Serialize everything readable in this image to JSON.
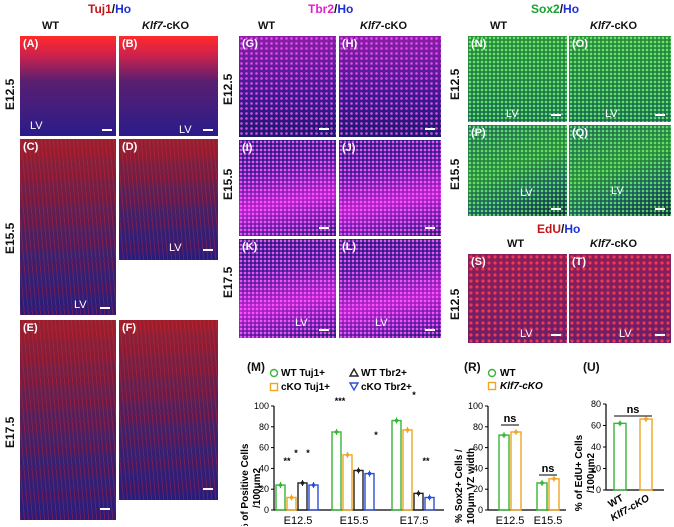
{
  "headers": {
    "tuj1": {
      "marker": "Tuj1",
      "sep": "/",
      "counter": "Ho"
    },
    "tbr2": {
      "marker": "Tbr2",
      "sep": "/",
      "counter": "Ho"
    },
    "sox2": {
      "marker": "Sox2",
      "sep": "/",
      "counter": "Ho"
    },
    "edu": {
      "marker": "EdU",
      "sep": "/",
      "counter": "Ho"
    }
  },
  "columns": {
    "wt": "WT",
    "cko_gene": "Klf7",
    "cko_suffix": "-cKO"
  },
  "rows": {
    "e125": "E12.5",
    "e155": "E15.5",
    "e175": "E17.5"
  },
  "panels": {
    "A": "(A)",
    "B": "(B)",
    "C": "(C)",
    "D": "(D)",
    "E": "(E)",
    "F": "(F)",
    "G": "(G)",
    "H": "(H)",
    "I": "(I)",
    "J": "(J)",
    "K": "(K)",
    "L": "(L)",
    "N": "(N)",
    "O": "(O)",
    "P": "(P)",
    "Q": "(Q)",
    "S": "(S)",
    "T": "(T)"
  },
  "lv": "LV",
  "panel_M": {
    "label": "(M)",
    "ylabel": [
      "% of Positive Cells",
      "/100μm2"
    ],
    "legend": [
      "WT Tuj1+",
      "WT Tbr2+",
      "cKO Tuj1+",
      "cKO Tbr2+"
    ],
    "categories": [
      "E12.5",
      "E15.5",
      "E17.5"
    ],
    "yticks": [
      "0",
      "20",
      "40",
      "60",
      "80",
      "100"
    ],
    "sig": [
      "**",
      "*",
      "*",
      "***",
      "*",
      "*",
      "**"
    ]
  },
  "panel_R": {
    "label": "(R)",
    "ylabel": [
      "% Sox2+ Cells /",
      "100μm VZ width"
    ],
    "legend": [
      "WT",
      "Klf7-cKO"
    ],
    "categories": [
      "E12.5",
      "E15.5"
    ],
    "yticks": [
      "0",
      "20",
      "40",
      "60",
      "80",
      "100"
    ],
    "sig": [
      "ns",
      "ns"
    ]
  },
  "panel_U": {
    "label": "(U)",
    "ylabel": [
      "% of EdU+ Cells",
      "/100μm2"
    ],
    "categories": [
      "WT",
      "Klf7-cKO"
    ],
    "yticks": [
      "0",
      "20",
      "40",
      "60",
      "80"
    ],
    "sig": [
      "ns"
    ]
  },
  "chart_data": [
    {
      "type": "bar",
      "panel": "M",
      "categories": [
        "E12.5",
        "E15.5",
        "E17.5"
      ],
      "series": [
        {
          "name": "WT Tuj1+",
          "values": [
            24,
            75,
            86
          ]
        },
        {
          "name": "cKO Tuj1+",
          "values": [
            12,
            53,
            77
          ]
        },
        {
          "name": "WT Tbr2+",
          "values": [
            26,
            38,
            16
          ]
        },
        {
          "name": "cKO Tbr2+",
          "values": [
            24,
            35,
            12
          ]
        }
      ],
      "ylim": [
        0,
        100
      ],
      "colors": {
        "WT Tuj1+": "#36b536",
        "cKO Tuj1+": "#f0a623",
        "WT Tbr2+": "#222222",
        "cKO Tbr2+": "#2b4ed8"
      }
    },
    {
      "type": "bar",
      "panel": "R",
      "categories": [
        "E12.5",
        "E15.5"
      ],
      "series": [
        {
          "name": "WT",
          "values": [
            72,
            26
          ]
        },
        {
          "name": "Klf7-cKO",
          "values": [
            75,
            30
          ]
        }
      ],
      "ylim": [
        0,
        100
      ],
      "colors": {
        "WT": "#36b536",
        "Klf7-cKO": "#f0a623"
      }
    },
    {
      "type": "bar",
      "panel": "U",
      "categories": [
        "WT",
        "Klf7-cKO"
      ],
      "values": [
        62,
        66
      ],
      "ylim": [
        0,
        80
      ],
      "colors": {
        "WT": "#36b536",
        "Klf7-cKO": "#f0a623"
      }
    }
  ]
}
